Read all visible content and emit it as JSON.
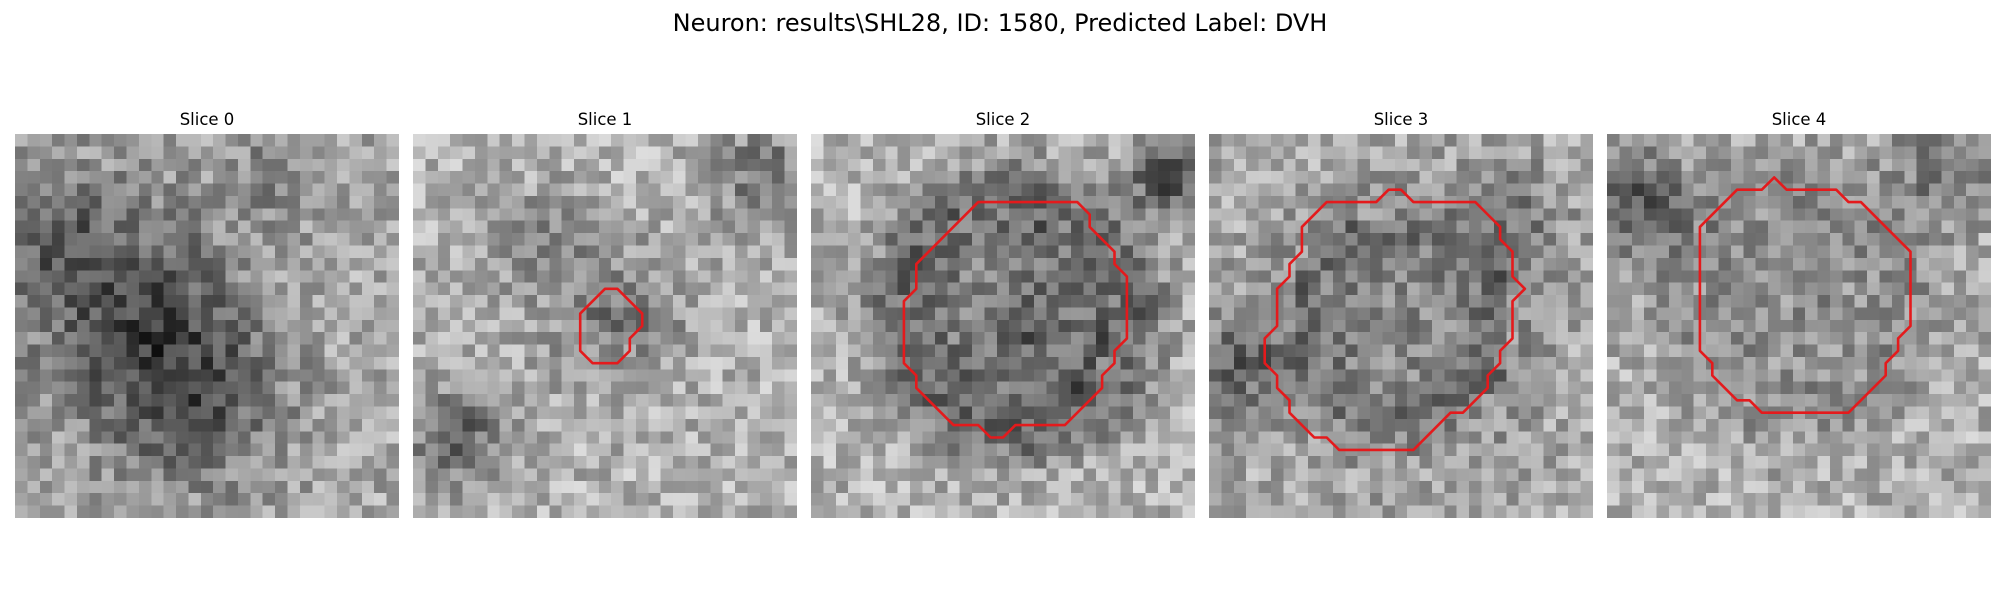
{
  "figure": {
    "title": "Neuron: results\\SHL28, ID: 1580, Predicted Label: DVH",
    "contour_color": "#e41a1c",
    "grid_size": 31
  },
  "panels": [
    {
      "title": "Slice 0",
      "has_contour": false,
      "contour": []
    },
    {
      "title": "Slice 1",
      "has_contour": true,
      "contour": [
        [
          15.5,
          12.5
        ],
        [
          16.5,
          12.5
        ],
        [
          18.5,
          14.5
        ],
        [
          18.5,
          15.5
        ],
        [
          17.5,
          16.5
        ],
        [
          17.5,
          17.5
        ],
        [
          16.5,
          18.5
        ],
        [
          14.5,
          18.5
        ],
        [
          13.5,
          17.5
        ],
        [
          13.5,
          14.5
        ]
      ]
    },
    {
      "title": "Slice 2",
      "has_contour": true,
      "contour": [
        [
          13.5,
          5.5
        ],
        [
          21.5,
          5.5
        ],
        [
          22.5,
          6.5
        ],
        [
          22.5,
          7.5
        ],
        [
          23.5,
          8.5
        ],
        [
          24.5,
          9.5
        ],
        [
          24.5,
          10.5
        ],
        [
          25.5,
          11.5
        ],
        [
          25.5,
          16.5
        ],
        [
          24.5,
          17.5
        ],
        [
          24.5,
          18.5
        ],
        [
          23.5,
          19.5
        ],
        [
          23.5,
          20.5
        ],
        [
          20.5,
          23.5
        ],
        [
          16.5,
          23.5
        ],
        [
          15.5,
          24.5
        ],
        [
          14.5,
          24.5
        ],
        [
          13.5,
          23.5
        ],
        [
          11.5,
          23.5
        ],
        [
          8.5,
          20.5
        ],
        [
          8.5,
          19.5
        ],
        [
          7.5,
          18.5
        ],
        [
          7.5,
          13.5
        ],
        [
          8.5,
          12.5
        ],
        [
          8.5,
          10.5
        ],
        [
          9.5,
          9.5
        ]
      ]
    },
    {
      "title": "Slice 3",
      "has_contour": true,
      "contour": [
        [
          9.5,
          5.5
        ],
        [
          13.5,
          5.5
        ],
        [
          14.5,
          4.5
        ],
        [
          15.5,
          4.5
        ],
        [
          16.5,
          5.5
        ],
        [
          21.5,
          5.5
        ],
        [
          22.5,
          6.5
        ],
        [
          23.5,
          7.5
        ],
        [
          23.5,
          8.5
        ],
        [
          24.5,
          9.5
        ],
        [
          24.5,
          11.5
        ],
        [
          25.5,
          12.5
        ],
        [
          24.5,
          13.5
        ],
        [
          24.5,
          16.5
        ],
        [
          23.5,
          17.5
        ],
        [
          23.5,
          18.5
        ],
        [
          22.5,
          19.5
        ],
        [
          22.5,
          20.5
        ],
        [
          21.5,
          21.5
        ],
        [
          20.5,
          22.5
        ],
        [
          19.5,
          22.5
        ],
        [
          18.5,
          23.5
        ],
        [
          16.5,
          25.5
        ],
        [
          10.5,
          25.5
        ],
        [
          9.5,
          24.5
        ],
        [
          8.5,
          24.5
        ],
        [
          6.5,
          22.5
        ],
        [
          6.5,
          21.5
        ],
        [
          5.5,
          20.5
        ],
        [
          5.5,
          19.5
        ],
        [
          4.5,
          18.5
        ],
        [
          4.5,
          16.5
        ],
        [
          5.5,
          15.5
        ],
        [
          5.5,
          12.5
        ],
        [
          6.5,
          11.5
        ],
        [
          6.5,
          10.5
        ],
        [
          7.5,
          9.5
        ],
        [
          7.5,
          7.5
        ]
      ]
    },
    {
      "title": "Slice 4",
      "has_contour": true,
      "contour": [
        [
          10.5,
          4.5
        ],
        [
          12.5,
          4.5
        ],
        [
          13.5,
          3.5
        ],
        [
          14.5,
          4.5
        ],
        [
          18.5,
          4.5
        ],
        [
          19.5,
          5.5
        ],
        [
          20.5,
          5.5
        ],
        [
          22.5,
          7.5
        ],
        [
          23.5,
          8.5
        ],
        [
          24.5,
          9.5
        ],
        [
          24.5,
          15.5
        ],
        [
          23.5,
          16.5
        ],
        [
          23.5,
          17.5
        ],
        [
          22.5,
          18.5
        ],
        [
          22.5,
          19.5
        ],
        [
          19.5,
          22.5
        ],
        [
          12.5,
          22.5
        ],
        [
          11.5,
          21.5
        ],
        [
          10.5,
          21.5
        ],
        [
          8.5,
          19.5
        ],
        [
          8.5,
          18.5
        ],
        [
          7.5,
          17.5
        ],
        [
          7.5,
          7.5
        ]
      ]
    }
  ]
}
